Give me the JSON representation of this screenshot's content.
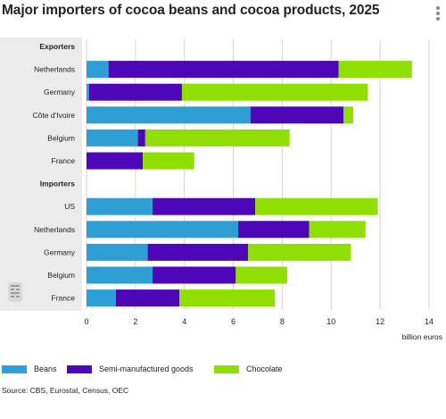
{
  "title": "Major importers of cocoa beans and cocoa products, 2025",
  "menu_icon": "more-vertical-icon",
  "logo_icon": "statistics-logo-icon",
  "source": "Source: CBS, Eurostat, Census, OEC",
  "colors": {
    "beans": "#2e9fd4",
    "semi": "#4d06b8",
    "chocolate": "#8fe000",
    "panel": "#ebebeb",
    "grid": "#d5d5d5"
  },
  "chart_data": {
    "type": "bar",
    "orientation": "horizontal",
    "stacked": true,
    "title": "Major importers of cocoa beans and cocoa products, 2025",
    "xlabel": "billion euros",
    "xlim": [
      0,
      14
    ],
    "xticks": [
      0,
      2,
      4,
      6,
      8,
      10,
      12,
      14
    ],
    "grid": true,
    "legend_position": "bottom",
    "groups": [
      {
        "label": "Exporters",
        "categories": [
          "Netherlands",
          "Germany",
          "Côte d'Ivoire",
          "Belgium",
          "France"
        ]
      },
      {
        "label": "Importers",
        "categories": [
          "US",
          "Netherlands",
          "Germany",
          "Belgium",
          "France"
        ]
      }
    ],
    "series": [
      {
        "name": "Beans",
        "color": "#2e9fd4",
        "values": [
          0.9,
          0.1,
          6.7,
          2.1,
          0.0,
          2.7,
          6.2,
          2.5,
          2.7,
          1.2
        ]
      },
      {
        "name": "Semi-manufactured goods",
        "color": "#4d06b8",
        "values": [
          9.4,
          3.8,
          3.8,
          0.3,
          2.3,
          4.2,
          2.9,
          4.1,
          3.4,
          2.6
        ]
      },
      {
        "name": "Chocolate",
        "color": "#8fe000",
        "values": [
          3.0,
          7.6,
          0.4,
          5.9,
          2.1,
          5.0,
          2.3,
          4.2,
          2.1,
          3.9
        ]
      }
    ]
  }
}
